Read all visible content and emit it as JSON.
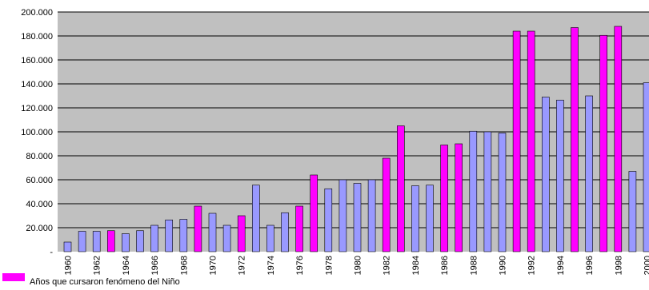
{
  "chart_data": {
    "type": "bar",
    "title": "",
    "xlabel": "",
    "ylabel": "",
    "ylim": [
      0,
      200000
    ],
    "yticks": [
      0,
      20000,
      40000,
      60000,
      80000,
      100000,
      120000,
      140000,
      160000,
      180000,
      200000
    ],
    "ytick_labels": [
      "-",
      "20.000",
      "40.000",
      "60.000",
      "80.000",
      "100.000",
      "120.000",
      "140.000",
      "160.000",
      "180.000",
      "200.000"
    ],
    "grid": true,
    "x_labeled_every": 2,
    "categories": [
      "1960",
      "1961",
      "1962",
      "1963",
      "1964",
      "1965",
      "1966",
      "1967",
      "1968",
      "1969",
      "1970",
      "1971",
      "1972",
      "1973",
      "1974",
      "1975",
      "1976",
      "1977",
      "1978",
      "1979",
      "1980",
      "1981",
      "1982",
      "1983",
      "1984",
      "1985",
      "1986",
      "1987",
      "1988",
      "1989",
      "1990",
      "1991",
      "1992",
      "1993",
      "1994",
      "1995",
      "1996",
      "1997",
      "1998",
      "1999",
      "2000"
    ],
    "values": [
      8000,
      17000,
      17000,
      17500,
      15000,
      17500,
      22000,
      26500,
      27000,
      38000,
      32000,
      22000,
      30000,
      55500,
      22000,
      32500,
      38000,
      64000,
      52500,
      60000,
      57000,
      60000,
      78000,
      105000,
      55000,
      55500,
      89000,
      90000,
      100500,
      100000,
      99000,
      184000,
      184000,
      129000,
      126500,
      187000,
      130000,
      180500,
      188000,
      67000,
      141000
    ],
    "el_nino": [
      false,
      false,
      false,
      true,
      false,
      false,
      false,
      false,
      false,
      true,
      false,
      false,
      true,
      false,
      false,
      false,
      true,
      true,
      false,
      false,
      false,
      false,
      true,
      true,
      false,
      false,
      true,
      true,
      false,
      false,
      false,
      true,
      true,
      false,
      false,
      true,
      false,
      true,
      true,
      false,
      false
    ],
    "colors": {
      "default_bar": "#9999ff",
      "el_nino_bar": "#ff00ff",
      "plot_background": "#c0c0c0",
      "gridline": "#000000"
    },
    "legend": {
      "label": "Años que cursaron fenómeno del  Niño",
      "color": "#ff00ff",
      "placement": "bottom-left"
    }
  }
}
